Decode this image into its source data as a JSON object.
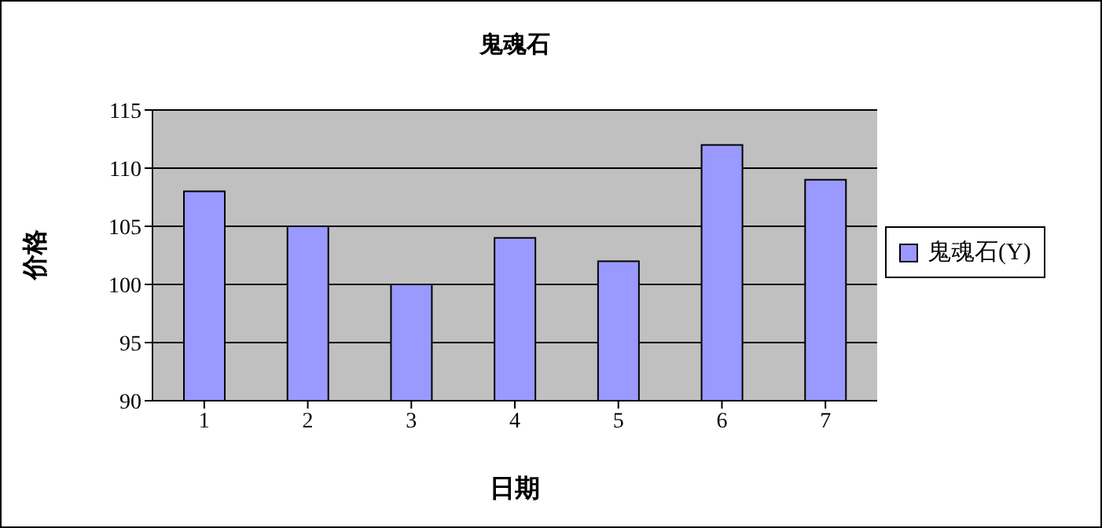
{
  "chart_data": {
    "type": "bar",
    "title": "鬼魂石",
    "xlabel": "日期",
    "ylabel": "价格",
    "categories": [
      "1",
      "2",
      "3",
      "4",
      "5",
      "6",
      "7"
    ],
    "series": [
      {
        "name": "鬼魂石(Y)",
        "color": "#9999ff",
        "values": [
          108,
          105,
          100,
          104,
          102,
          112,
          109
        ]
      }
    ],
    "ylim": [
      90,
      115
    ],
    "yticks": [
      90,
      95,
      100,
      105,
      110,
      115
    ],
    "grid": "y",
    "legend": "right"
  }
}
